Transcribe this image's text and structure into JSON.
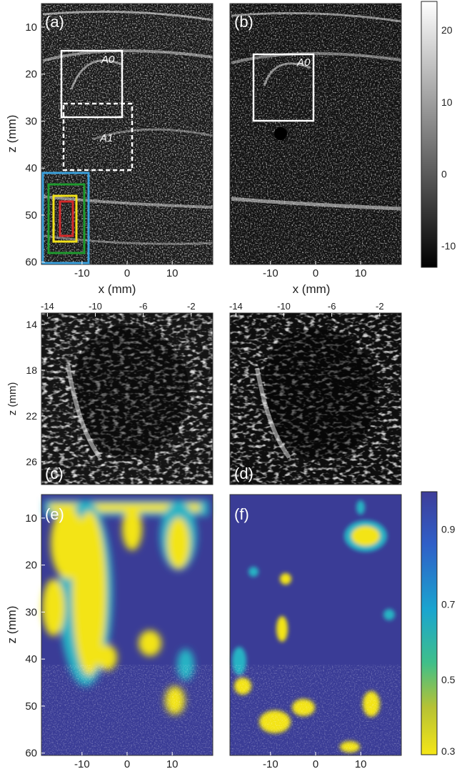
{
  "figure": {
    "panels": [
      {
        "id": "a",
        "label": "(a)",
        "region_labels": [
          "A0",
          "A1"
        ]
      },
      {
        "id": "b",
        "label": "(b)",
        "region_labels": [
          "A0"
        ]
      },
      {
        "id": "c",
        "label": "(c)"
      },
      {
        "id": "d",
        "label": "(d)"
      },
      {
        "id": "e",
        "label": "(e)"
      },
      {
        "id": "f",
        "label": "(f)"
      }
    ],
    "axis_labels": {
      "z_mm": "z (mm)",
      "x_mm": "x (mm)"
    },
    "colors": {
      "box_white": "#ffffff",
      "box_blue": "#3aa0dc",
      "box_green": "#1f9a2e",
      "box_yellow": "#f2e21a",
      "box_red": "#d42a2a",
      "map_high": "#3a3c96",
      "map_mid": "#26b3c4",
      "map_low": "#f3e417"
    }
  },
  "chart_data": [
    {
      "type": "heatmap",
      "panel": "(a)",
      "xlabel": "x (mm)",
      "ylabel": "z (mm)",
      "xticks": [
        -10,
        0,
        10
      ],
      "yticks": [
        10,
        20,
        30,
        40,
        50,
        60
      ],
      "xlim": [
        -19,
        19
      ],
      "ylim": [
        60.5,
        5
      ],
      "colorbar": {
        "ticks": [
          20,
          10,
          0,
          -10
        ],
        "range": [
          -13,
          24
        ]
      },
      "annotations": [
        "A0",
        "A1"
      ]
    },
    {
      "type": "heatmap",
      "panel": "(b)",
      "xlabel": "x (mm)",
      "xticks": [
        -10,
        0,
        10
      ],
      "xlim": [
        -19,
        19
      ],
      "ylim": [
        60.5,
        5
      ],
      "annotations": [
        "A0"
      ]
    },
    {
      "type": "heatmap",
      "panel": "(c)",
      "ylabel": "z (mm)",
      "xticks": [
        -14,
        -10,
        -6,
        -2
      ],
      "yticks": [
        14,
        18,
        22,
        26
      ],
      "xlim": [
        -14.5,
        -0.2
      ],
      "ylim": [
        13,
        28
      ]
    },
    {
      "type": "heatmap",
      "panel": "(d)",
      "xticks": [
        -14,
        -10,
        -6,
        -2
      ],
      "xlim": [
        -14.5,
        -0.2
      ],
      "ylim": [
        13,
        28
      ]
    },
    {
      "type": "heatmap",
      "panel": "(e)",
      "ylabel": "z (mm)",
      "xticks": [
        -10,
        0,
        10
      ],
      "yticks": [
        10,
        20,
        30,
        40,
        50,
        60
      ],
      "xlim": [
        -19,
        19
      ],
      "ylim": [
        60.5,
        5
      ],
      "colorbar": {
        "ticks": [
          0.9,
          0.7,
          0.5,
          0.3
        ],
        "range": [
          0.3,
          1.0
        ]
      }
    },
    {
      "type": "heatmap",
      "panel": "(f)",
      "xticks": [
        -10,
        0,
        10
      ],
      "xlim": [
        -19,
        19
      ],
      "ylim": [
        60.5,
        5
      ]
    }
  ]
}
